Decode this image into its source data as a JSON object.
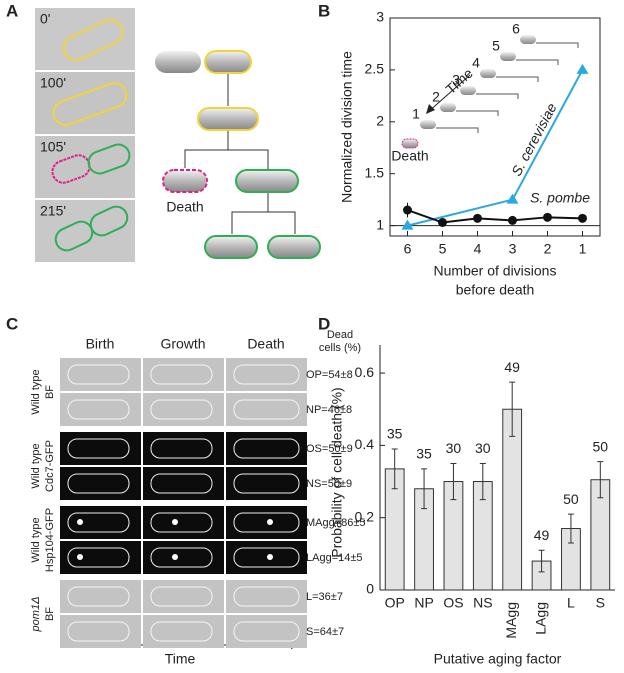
{
  "panel_labels": [
    "A",
    "B",
    "C",
    "D"
  ],
  "panel_a": {
    "times": [
      "0'",
      "100'",
      "105'",
      "215'"
    ],
    "death_label": "Death"
  },
  "panel_c": {
    "columns": [
      "Birth",
      "Growth",
      "Death"
    ],
    "dead_header": [
      "Dead",
      "cells (%)"
    ],
    "groups": [
      [
        "Wild type",
        "BF"
      ],
      [
        "Wild type",
        "Cdc7-GFP"
      ],
      [
        "Wild type",
        "Hsp104-GFP"
      ],
      [
        "pom1Δ",
        "BF"
      ]
    ],
    "rows": [
      "OP=54±8",
      "NP=46±8",
      "OS=50±9",
      "NS=50±9",
      "MAgg=86±5",
      "LAgg=14±5",
      "L=36±7",
      "S=64±7"
    ],
    "time_label": "Time"
  },
  "chart_data": [
    {
      "type": "line",
      "ylabel": "Normalized division time",
      "xlabel": [
        "Number of divisions",
        "before death"
      ],
      "x": [
        6,
        5,
        4,
        3,
        2,
        1
      ],
      "xlim": [
        6.5,
        0.5
      ],
      "xticks": [
        6,
        5,
        4,
        3,
        2,
        1
      ],
      "ylim": [
        0.9,
        3
      ],
      "yticks": [
        1,
        1.5,
        2,
        2.5,
        3
      ],
      "reference_line": 1,
      "series": [
        {
          "name": "S. cerevisiae",
          "color": "#29a9e0",
          "x": [
            6,
            3,
            1
          ],
          "values": [
            1,
            1.25,
            2.5
          ]
        },
        {
          "name": "S. pombe",
          "color": "#111111",
          "values": [
            1.15,
            1.03,
            1.07,
            1.05,
            1.08,
            1.07
          ],
          "errors": [
            0.07,
            0.02,
            0.02,
            0.02,
            0.02,
            0.02
          ]
        }
      ],
      "inset": {
        "arrow_label": "Time",
        "divisions": [
          "6",
          "5",
          "4",
          "3",
          "2",
          "1"
        ],
        "death_label": "Death"
      }
    },
    {
      "type": "bar",
      "ylabel": "Probability of cell death (%)",
      "xlabel": "Putative aging factor",
      "categories": [
        "OP",
        "NP",
        "OS",
        "NS",
        "MAgg",
        "LAgg",
        "L",
        "S"
      ],
      "values": [
        0.335,
        0.28,
        0.3,
        0.3,
        0.5,
        0.08,
        0.17,
        0.305
      ],
      "errors": [
        0.055,
        0.055,
        0.05,
        0.05,
        0.075,
        0.03,
        0.04,
        0.05
      ],
      "counts": [
        35,
        35,
        30,
        30,
        49,
        49,
        50,
        50
      ],
      "color": "#e3e3e3",
      "ylim": [
        0,
        0.65
      ],
      "yticks": [
        0,
        0.2,
        0.4,
        0.6
      ]
    }
  ]
}
